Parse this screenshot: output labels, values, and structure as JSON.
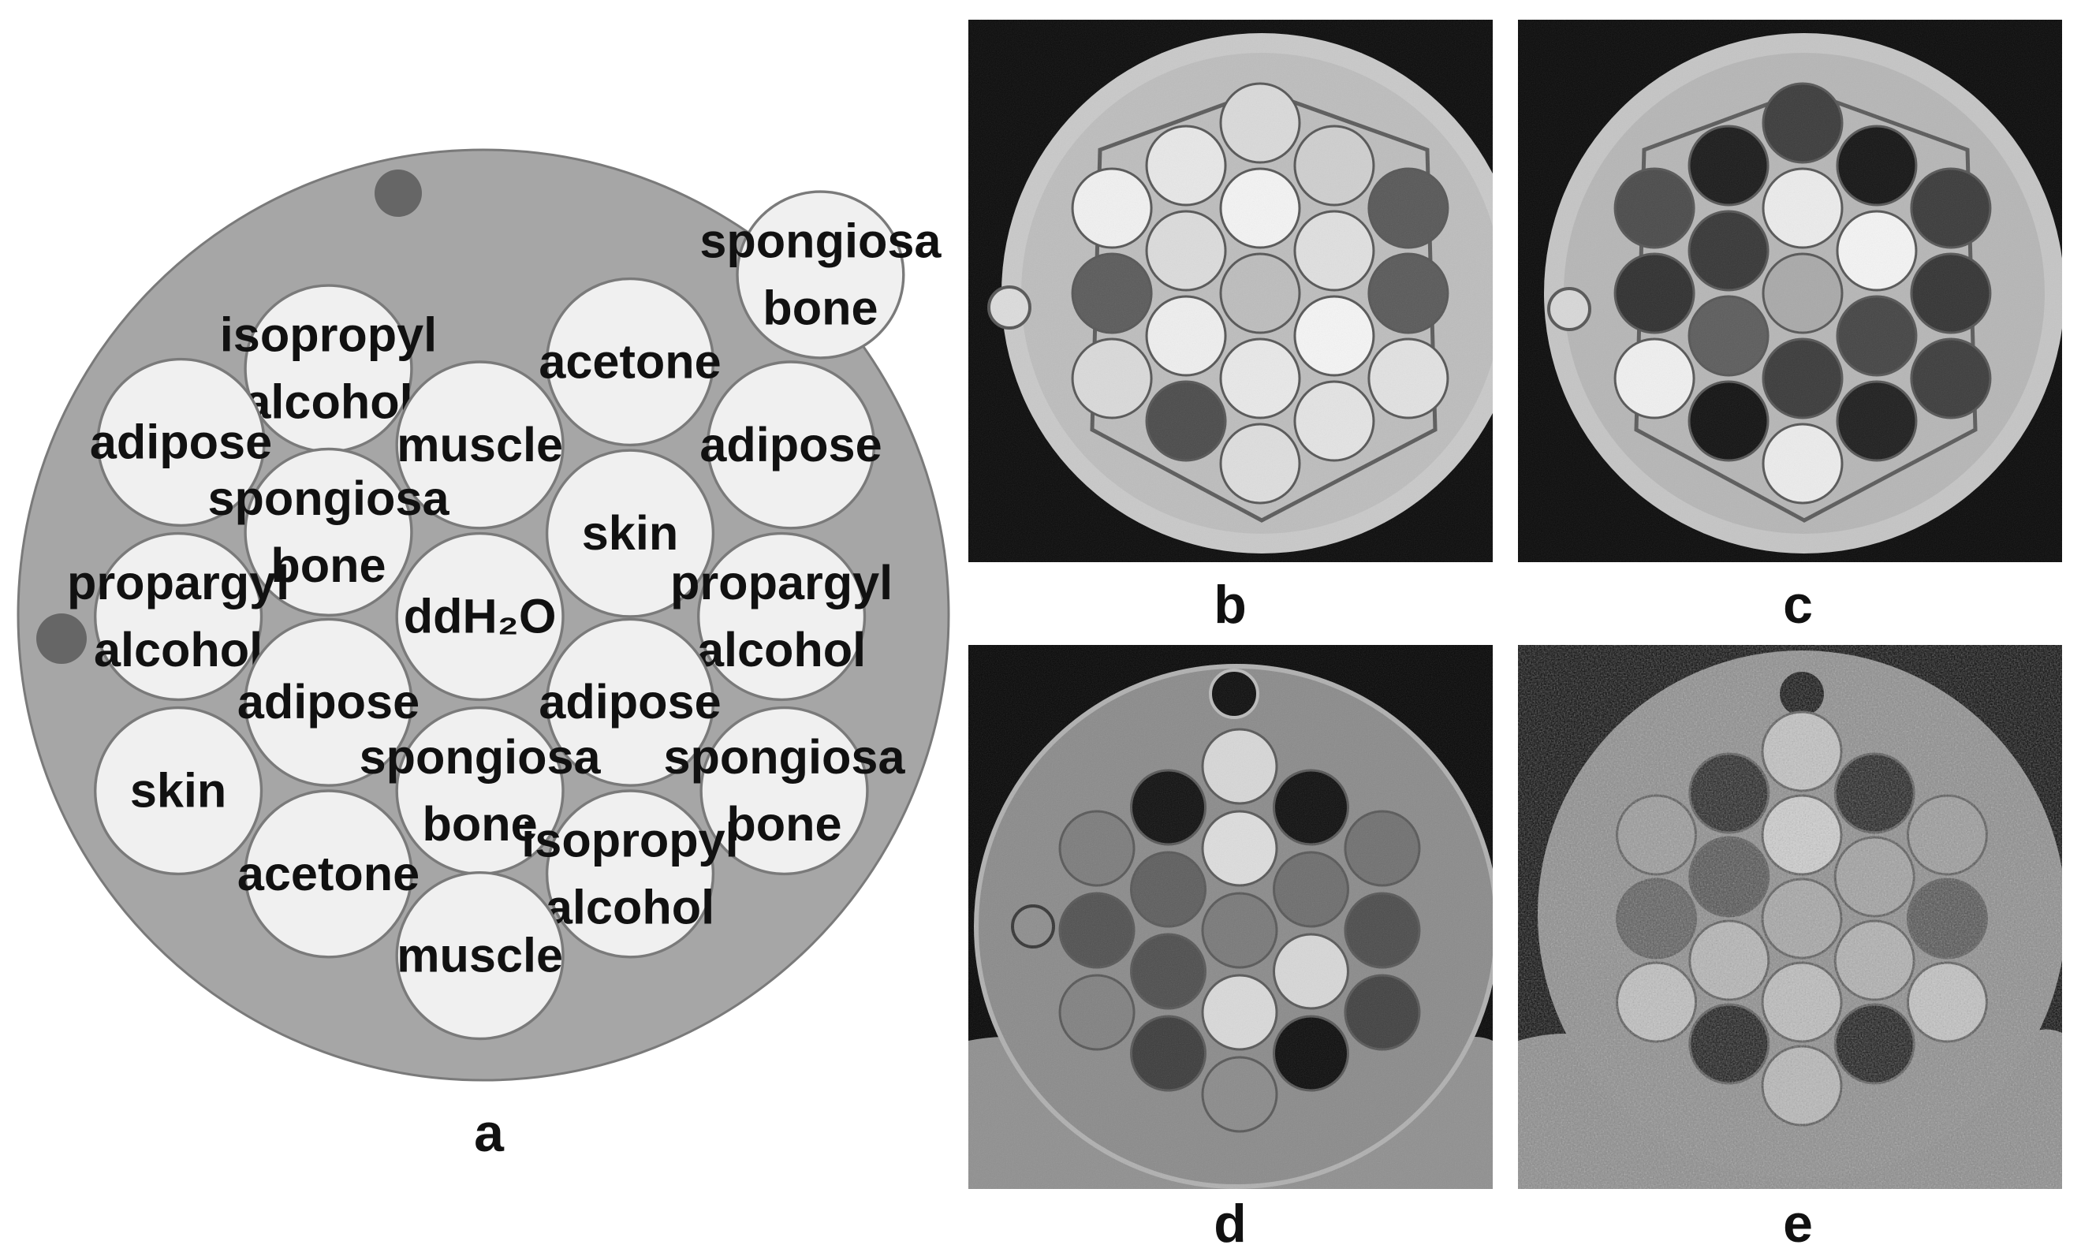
{
  "panel_a": {
    "letter": "a",
    "inserts": [
      {
        "lines": [
          "spongiosa",
          "bone"
        ]
      },
      {
        "lines": [
          "isopropyl",
          "alcohol"
        ]
      },
      {
        "lines": [
          "acetone"
        ]
      },
      {
        "lines": [
          "adipose"
        ]
      },
      {
        "lines": [
          "muscle"
        ]
      },
      {
        "lines": [
          "adipose"
        ]
      },
      {
        "lines": [
          "spongiosa",
          "bone"
        ]
      },
      {
        "lines": [
          "skin"
        ]
      },
      {
        "lines": [
          "propargyl",
          "alcohol"
        ]
      },
      {
        "lines": [
          "ddH₂O"
        ]
      },
      {
        "lines": [
          "propargyl",
          "alcohol"
        ]
      },
      {
        "lines": [
          "adipose"
        ]
      },
      {
        "lines": [
          "adipose"
        ]
      },
      {
        "lines": [
          "skin"
        ]
      },
      {
        "lines": [
          "spongiosa",
          "bone"
        ]
      },
      {
        "lines": [
          "spongiosa",
          "bone"
        ]
      },
      {
        "lines": [
          "acetone"
        ]
      },
      {
        "lines": [
          "isopropyl",
          "alcohol"
        ]
      },
      {
        "lines": [
          "muscle"
        ]
      }
    ]
  },
  "panel_b": {
    "letter": "b"
  },
  "panel_c": {
    "letter": "c"
  },
  "panel_d": {
    "letter": "d"
  },
  "panel_e": {
    "letter": "e"
  },
  "colors": {
    "phantom_body": "#a6a6a6",
    "insert_fill": "#f0f0f0",
    "marker": "#666666",
    "outline": "#7a7a7a"
  }
}
